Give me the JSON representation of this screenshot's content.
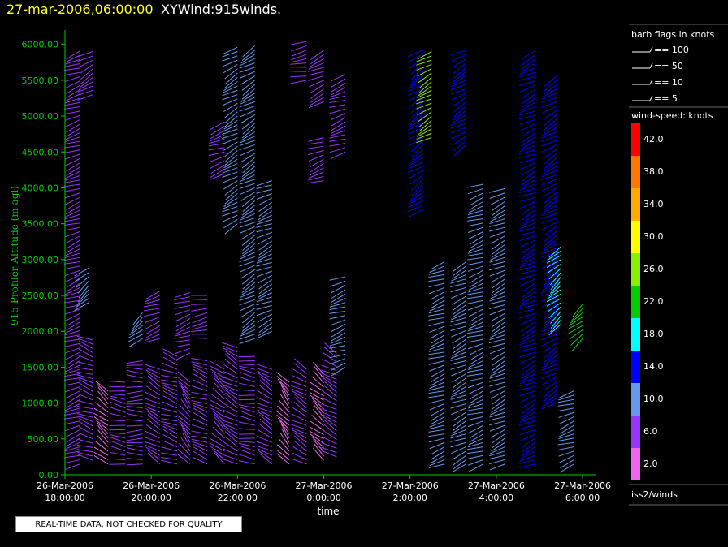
{
  "header": {
    "date_label": "27-mar-2006,06:00:00",
    "app_title": "XYWind:915winds."
  },
  "notice": "REAL-TIME DATA, NOT CHECKED FOR QUALITY",
  "legend": {
    "barb_title": "barb flags in knots",
    "barb_items": [
      "== 100",
      "== 50",
      "== 10",
      "== 5"
    ],
    "speed_title": "wind-speed: knots",
    "speed_bins": [
      {
        "label": "42.0",
        "color": "#ff0000"
      },
      {
        "label": "38.0",
        "color": "#ff7700"
      },
      {
        "label": "34.0",
        "color": "#ffaa00"
      },
      {
        "label": "30.0",
        "color": "#ffff00"
      },
      {
        "label": "26.0",
        "color": "#88ee00"
      },
      {
        "label": "22.0",
        "color": "#00cc00"
      },
      {
        "label": "18.0",
        "color": "#00ffff"
      },
      {
        "label": "14.0",
        "color": "#0000ff"
      },
      {
        "label": "10.0",
        "color": "#6699ee"
      },
      {
        "label": "6.0",
        "color": "#9933ff"
      },
      {
        "label": "2.0",
        "color": "#ee66ee"
      }
    ],
    "source": "iss2/winds"
  },
  "chart_data": {
    "type": "scatter",
    "ylabel": "915 Profiler Altitude (m agl)",
    "xlabel": "time",
    "ylim": [
      0,
      6200
    ],
    "y_ticks": [
      "0.00",
      "500.00",
      "1000.00",
      "1500.00",
      "2000.00",
      "2500.00",
      "3000.00",
      "3500.00",
      "4000.00",
      "4500.00",
      "5000.00",
      "5500.00",
      "6000.00"
    ],
    "y_tick_values": [
      0,
      500,
      1000,
      1500,
      2000,
      2500,
      3000,
      3500,
      4000,
      4500,
      5000,
      5500,
      6000
    ],
    "x_ticks": [
      {
        "date": "26-Mar-2006",
        "time": "18:00:00"
      },
      {
        "date": "26-Mar-2006",
        "time": "20:00:00"
      },
      {
        "date": "26-Mar-2006",
        "time": "22:00:00"
      },
      {
        "date": "27-Mar-2006",
        "time": "0:00:00"
      },
      {
        "date": "27-Mar-2006",
        "time": "2:00:00"
      },
      {
        "date": "27-Mar-2006",
        "time": "4:00:00"
      },
      {
        "date": "27-Mar-2006",
        "time": "6:00:00"
      }
    ],
    "x_tick_hours": [
      0,
      2,
      4,
      6,
      8,
      10,
      12
    ],
    "xlim_hours": [
      0,
      12.3
    ],
    "profiles": [
      {
        "t": 0.35,
        "bot": 150,
        "top": 5950,
        "dir": 250,
        "spd": 7
      },
      {
        "t": 0.65,
        "bot": 5300,
        "top": 5950,
        "dir": 240,
        "spd": 7
      },
      {
        "t": 0.55,
        "bot": 2400,
        "top": 2900,
        "dir": 230,
        "spd": 10
      },
      {
        "t": 0.65,
        "bot": 200,
        "top": 1900,
        "dir": 290,
        "spd": 4
      },
      {
        "t": 1.0,
        "bot": 150,
        "top": 1200,
        "dir": 310,
        "spd": 3
      },
      {
        "t": 1.4,
        "bot": 150,
        "top": 1300,
        "dir": 280,
        "spd": 4
      },
      {
        "t": 1.8,
        "bot": 150,
        "top": 1600,
        "dir": 270,
        "spd": 5
      },
      {
        "t": 1.8,
        "bot": 1900,
        "top": 2300,
        "dir": 230,
        "spd": 10
      },
      {
        "t": 2.2,
        "bot": 150,
        "top": 1500,
        "dir": 300,
        "spd": 4
      },
      {
        "t": 2.2,
        "bot": 1900,
        "top": 2600,
        "dir": 250,
        "spd": 7
      },
      {
        "t": 2.6,
        "bot": 150,
        "top": 1700,
        "dir": 290,
        "spd": 5
      },
      {
        "t": 2.9,
        "bot": 150,
        "top": 1300,
        "dir": 320,
        "spd": 4
      },
      {
        "t": 2.9,
        "bot": 1700,
        "top": 2550,
        "dir": 250,
        "spd": 7
      },
      {
        "t": 3.3,
        "bot": 150,
        "top": 1600,
        "dir": 290,
        "spd": 5
      },
      {
        "t": 3.3,
        "bot": 1900,
        "top": 2550,
        "dir": 260,
        "spd": 7
      },
      {
        "t": 3.7,
        "bot": 150,
        "top": 1500,
        "dir": 310,
        "spd": 4
      },
      {
        "t": 3.7,
        "bot": 4200,
        "top": 4950,
        "dir": 250,
        "spd": 7
      },
      {
        "t": 4.0,
        "bot": 150,
        "top": 1800,
        "dir": 300,
        "spd": 5
      },
      {
        "t": 4.0,
        "bot": 3500,
        "top": 6000,
        "dir": 240,
        "spd": 8
      },
      {
        "t": 4.4,
        "bot": 150,
        "top": 1700,
        "dir": 280,
        "spd": 4
      },
      {
        "t": 4.4,
        "bot": 1900,
        "top": 6000,
        "dir": 240,
        "spd": 9
      },
      {
        "t": 4.8,
        "bot": 150,
        "top": 1500,
        "dir": 300,
        "spd": 4
      },
      {
        "t": 4.8,
        "bot": 2000,
        "top": 4100,
        "dir": 245,
        "spd": 9
      },
      {
        "t": 5.2,
        "bot": 150,
        "top": 1300,
        "dir": 320,
        "spd": 3
      },
      {
        "t": 5.6,
        "bot": 150,
        "top": 1500,
        "dir": 300,
        "spd": 4
      },
      {
        "t": 5.6,
        "bot": 5500,
        "top": 6050,
        "dir": 260,
        "spd": 7
      },
      {
        "t": 6.0,
        "bot": 200,
        "top": 1400,
        "dir": 310,
        "spd": 3
      },
      {
        "t": 6.0,
        "bot": 4100,
        "top": 4700,
        "dir": 250,
        "spd": 7
      },
      {
        "t": 6.0,
        "bot": 5200,
        "top": 5950,
        "dir": 245,
        "spd": 7
      },
      {
        "t": 6.3,
        "bot": 250,
        "top": 1700,
        "dir": 300,
        "spd": 4
      },
      {
        "t": 6.5,
        "bot": 1500,
        "top": 2800,
        "dir": 250,
        "spd": 8
      },
      {
        "t": 6.5,
        "bot": 4500,
        "top": 5600,
        "dir": 250,
        "spd": 7
      },
      {
        "t": 8.3,
        "bot": 3700,
        "top": 5950,
        "dir": 235,
        "spd": 14
      },
      {
        "t": 8.5,
        "bot": 4700,
        "top": 5950,
        "dir": 240,
        "spd": 24
      },
      {
        "t": 8.8,
        "bot": 150,
        "top": 3000,
        "dir": 250,
        "spd": 8
      },
      {
        "t": 9.3,
        "bot": 150,
        "top": 3000,
        "dir": 245,
        "spd": 9
      },
      {
        "t": 9.3,
        "bot": 4600,
        "top": 5950,
        "dir": 240,
        "spd": 13
      },
      {
        "t": 9.7,
        "bot": 150,
        "top": 4100,
        "dir": 250,
        "spd": 8
      },
      {
        "t": 10.2,
        "bot": 150,
        "top": 4000,
        "dir": 245,
        "spd": 10
      },
      {
        "t": 10.9,
        "bot": 150,
        "top": 5950,
        "dir": 245,
        "spd": 12
      },
      {
        "t": 11.4,
        "bot": 1000,
        "top": 5600,
        "dir": 240,
        "spd": 14
      },
      {
        "t": 11.5,
        "bot": 2100,
        "top": 3200,
        "dir": 230,
        "spd": 18
      },
      {
        "t": 11.8,
        "bot": 150,
        "top": 1200,
        "dir": 250,
        "spd": 10
      },
      {
        "t": 12.0,
        "bot": 1900,
        "top": 2400,
        "dir": 230,
        "spd": 22
      }
    ]
  }
}
